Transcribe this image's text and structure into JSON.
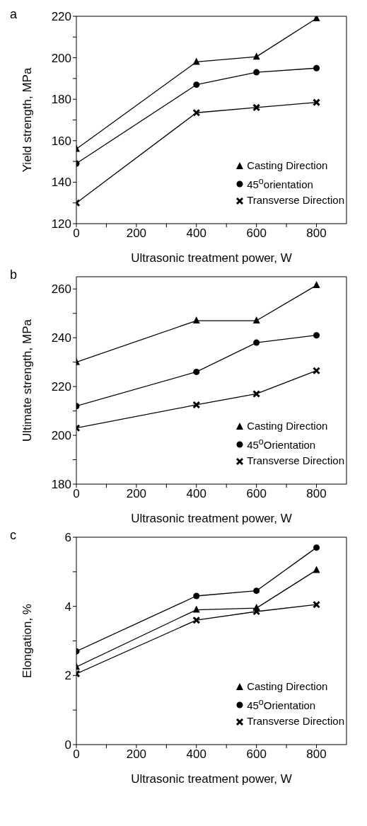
{
  "chart_data": [
    {
      "type": "line",
      "annotations": [
        "a"
      ],
      "xlabel": "Ultrasonic treatment power, W",
      "ylabel": "Yield strength, MPa",
      "x": [
        0,
        400,
        600,
        800
      ],
      "xlim": [
        0,
        900
      ],
      "xticks": [
        0,
        {
          "value": 100,
          "label": null
        },
        200,
        {
          "value": 300,
          "label": null
        },
        400,
        {
          "value": 500,
          "label": null
        },
        600,
        {
          "value": 700,
          "label": null
        },
        800
      ],
      "ylim": [
        120,
        220
      ],
      "yticks": [
        120,
        {
          "value": 130,
          "label": null
        },
        140,
        {
          "value": 150,
          "label": null
        },
        160,
        {
          "value": 170,
          "label": null
        },
        180,
        {
          "value": 190,
          "label": null
        },
        200,
        {
          "value": 210,
          "label": null
        },
        220
      ],
      "grid": false,
      "legend": "bottom right",
      "series": [
        {
          "name": "Casting Direction",
          "color": "#000000",
          "marker": "triangle",
          "values": [
            156,
            198,
            200.5,
            219
          ]
        },
        {
          "name": "45$^{o}$orientation",
          "color": "#000000",
          "marker": "circle",
          "values": [
            149,
            187,
            193,
            195
          ]
        },
        {
          "name": "Transverse Direction",
          "color": "#000000",
          "marker": "cross",
          "values": [
            130,
            173.5,
            176,
            178.5
          ]
        }
      ]
    },
    {
      "type": "line",
      "annotations": [
        "b"
      ],
      "xlabel": "Ultrasonic treatment power, W",
      "ylabel": "Ultimate strength, MPa",
      "x": [
        0,
        400,
        600,
        800
      ],
      "xlim": [
        0,
        900
      ],
      "xticks": [
        0,
        {
          "value": 100,
          "label": null
        },
        200,
        {
          "value": 300,
          "label": null
        },
        400,
        {
          "value": 500,
          "label": null
        },
        600,
        {
          "value": 700,
          "label": null
        },
        800
      ],
      "ylim": [
        180,
        265
      ],
      "yticks": [
        180,
        {
          "value": 190,
          "label": null
        },
        200,
        {
          "value": 210,
          "label": null
        },
        220,
        {
          "value": 230,
          "label": null
        },
        240,
        {
          "value": 250,
          "label": null
        },
        260
      ],
      "grid": false,
      "legend": "bottom right",
      "series": [
        {
          "name": "Casting Direction",
          "color": "#000000",
          "marker": "triangle",
          "values": [
            230,
            247,
            247,
            261.5
          ]
        },
        {
          "name": "45$^{o}$Orientation",
          "color": "#000000",
          "marker": "circle",
          "values": [
            212,
            226,
            238,
            241
          ]
        },
        {
          "name": "Transverse Direction",
          "color": "#000000",
          "marker": "cross",
          "values": [
            203,
            212.5,
            217,
            226.5
          ]
        }
      ]
    },
    {
      "type": "line",
      "annotations": [
        "c"
      ],
      "xlabel": "Ultrasonic treatment power, W",
      "ylabel": "Elongation, %",
      "x": [
        0,
        400,
        600,
        800
      ],
      "xlim": [
        0,
        900
      ],
      "xticks": [
        0,
        {
          "value": 100,
          "label": null
        },
        200,
        {
          "value": 300,
          "label": null
        },
        400,
        {
          "value": 500,
          "label": null
        },
        600,
        {
          "value": 700,
          "label": null
        },
        800
      ],
      "ylim": [
        0,
        6
      ],
      "yticks": [
        0,
        {
          "value": 1,
          "label": null
        },
        2,
        {
          "value": 3,
          "label": null
        },
        4,
        {
          "value": 5,
          "label": null
        },
        6
      ],
      "grid": false,
      "legend": "bottom right",
      "series": [
        {
          "name": "Casting Direction",
          "color": "#000000",
          "marker": "triangle",
          "values": [
            2.25,
            3.9,
            3.95,
            5.05
          ]
        },
        {
          "name": "45$^{o}$Orientation",
          "color": "#000000",
          "marker": "circle",
          "values": [
            2.7,
            4.3,
            4.45,
            5.7
          ]
        },
        {
          "name": "Transverse Direction",
          "color": "#000000",
          "marker": "cross",
          "values": [
            2.05,
            3.6,
            3.85,
            4.05
          ]
        }
      ]
    }
  ]
}
